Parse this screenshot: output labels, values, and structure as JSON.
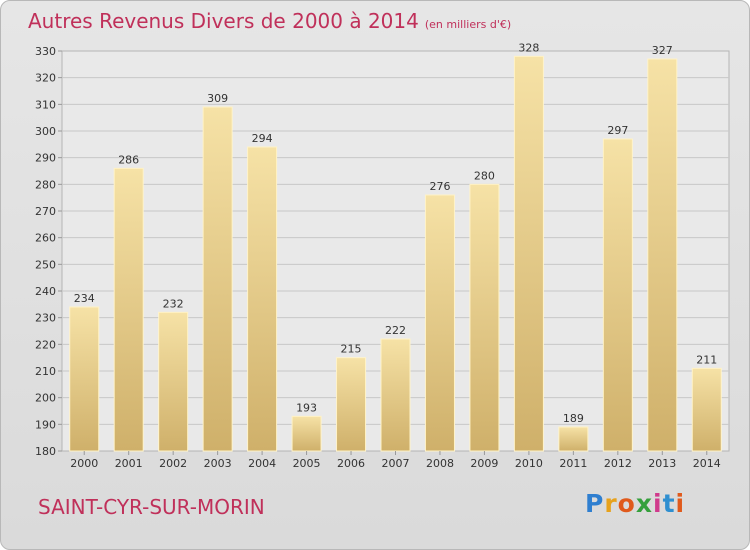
{
  "title": {
    "main": "Autres Revenus Divers de 2000 à 2014",
    "unit": "(en milliers d'€)"
  },
  "commune": "SAINT-CYR-SUR-MORIN",
  "logo": {
    "letters": [
      "P",
      "r",
      "o",
      "x",
      "i",
      "t",
      "i"
    ],
    "colors": [
      "#2f7fd0",
      "#e7a21c",
      "#e05a1c",
      "#35a03c",
      "#d03a8c",
      "#2f8fd0",
      "#e05a1c"
    ]
  },
  "colors": {
    "bar_light": "#f6e2a6",
    "bar_dark": "#cfb06a",
    "title": "#c0305a"
  },
  "chart_data": {
    "type": "bar",
    "title": "Autres Revenus Divers de 2000 à 2014",
    "subtitle": "(en milliers d'€)",
    "xlabel": "",
    "ylabel": "",
    "categories": [
      "2000",
      "2001",
      "2002",
      "2003",
      "2004",
      "2005",
      "2006",
      "2007",
      "2008",
      "2009",
      "2010",
      "2011",
      "2012",
      "2013",
      "2014"
    ],
    "values": [
      234,
      286,
      232,
      309,
      294,
      193,
      215,
      222,
      276,
      280,
      328,
      189,
      297,
      327,
      211
    ],
    "ylim": [
      180,
      330
    ],
    "yticks": [
      180,
      190,
      200,
      210,
      220,
      230,
      240,
      250,
      260,
      270,
      280,
      290,
      300,
      310,
      320,
      330
    ],
    "grid": true,
    "legend": "none"
  }
}
